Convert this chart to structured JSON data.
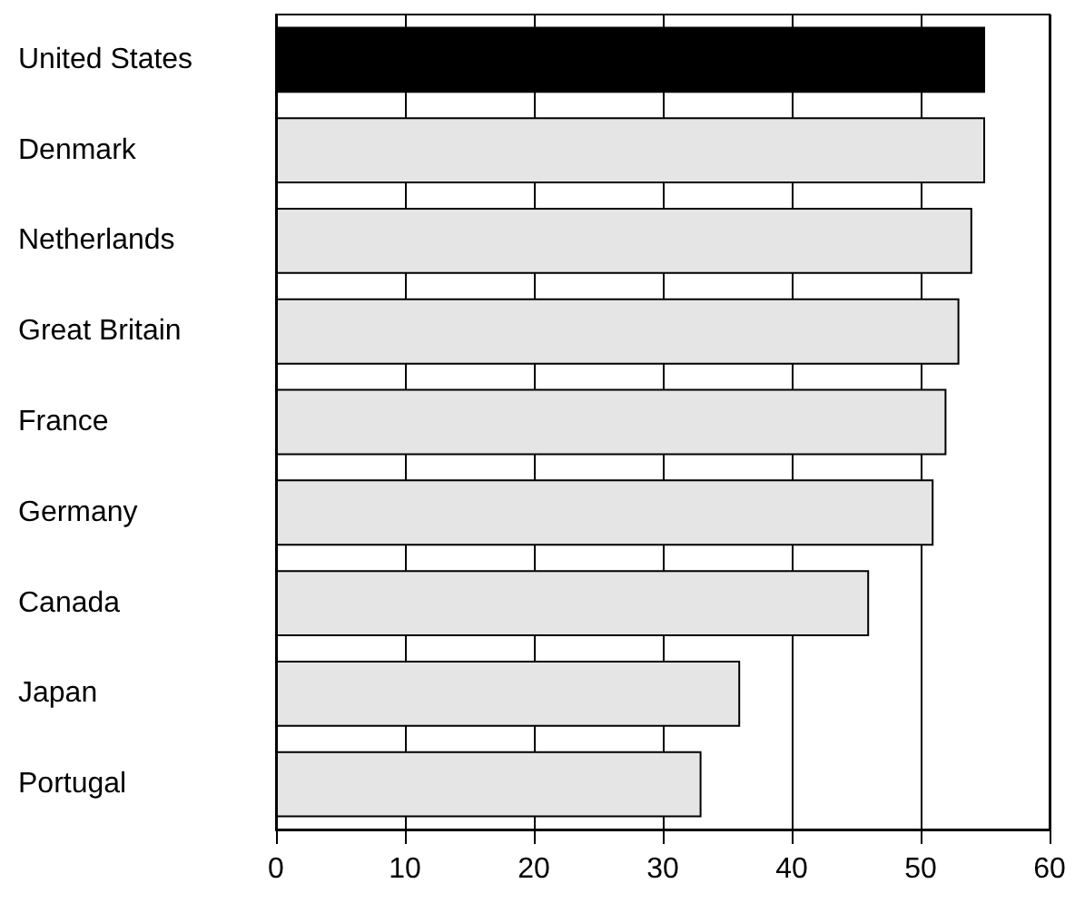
{
  "chart_data": {
    "type": "bar",
    "orientation": "horizontal",
    "categories": [
      "United States",
      "Denmark",
      "Netherlands",
      "Great Britain",
      "France",
      "Germany",
      "Canada",
      "Japan",
      "Portugal"
    ],
    "values": [
      55,
      55,
      54,
      53,
      52,
      51,
      46,
      36,
      33
    ],
    "colors": [
      "#000000",
      "#e5e5e5",
      "#e5e5e5",
      "#e5e5e5",
      "#e5e5e5",
      "#e5e5e5",
      "#e5e5e5",
      "#e5e5e5",
      "#e5e5e5"
    ],
    "xlim": [
      0,
      60
    ],
    "xticks": [
      0,
      10,
      20,
      30,
      40,
      50,
      60
    ],
    "grid": "x"
  }
}
